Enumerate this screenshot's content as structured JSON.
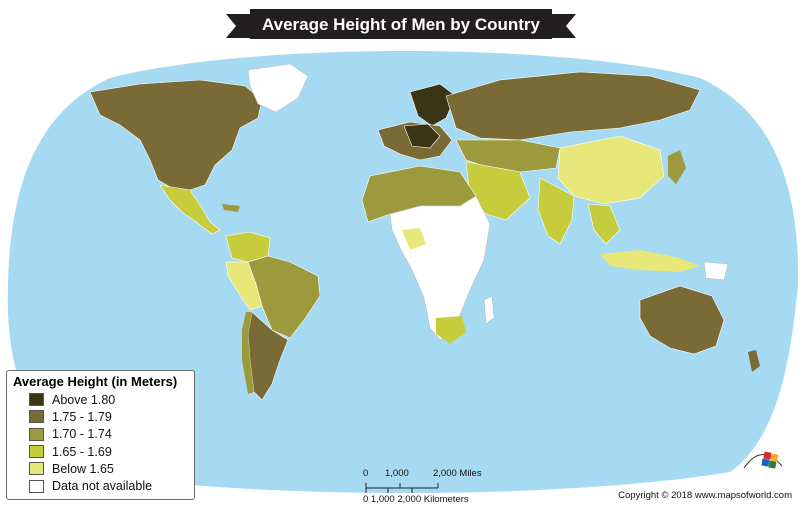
{
  "title": "Average Height of Men by Country",
  "legend": {
    "title": "Average Height (in Meters)",
    "items": [
      {
        "label": "Above 1.80",
        "color": "#3a3515"
      },
      {
        "label": "1.75 - 1.79",
        "color": "#7a6a35"
      },
      {
        "label": "1.70 - 1.74",
        "color": "#9c9a3c"
      },
      {
        "label": "1.65 - 1.69",
        "color": "#c7cc3d"
      },
      {
        "label": "Below 1.65",
        "color": "#e8e87a"
      },
      {
        "label": "Data not available",
        "color": "#ffffff"
      }
    ]
  },
  "scale": {
    "miles_0": "0",
    "miles_mid": "1,000",
    "miles_end": "2,000 Miles",
    "km_label": "0 1,000  2,000 Kilometers"
  },
  "copyright": "Copyright © 2018 www.mapsofworld.com",
  "colors": {
    "ocean": "#a6daf3",
    "outline": "#ffffff",
    "banner": "#231f20"
  }
}
